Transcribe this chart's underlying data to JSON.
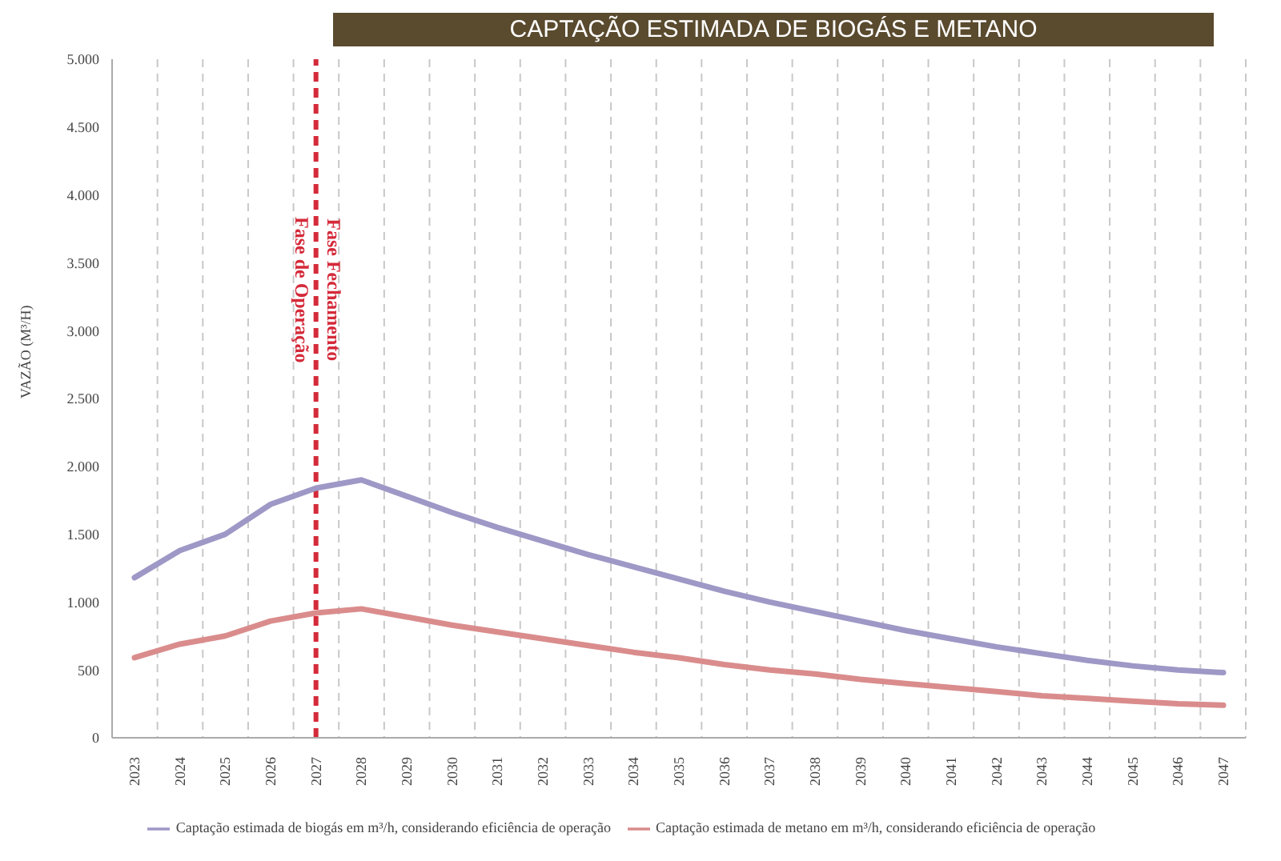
{
  "chart_data": {
    "type": "line",
    "title": "CAPTAÇÃO ESTIMADA DE BIOGÁS E METANO",
    "ylabel": "VAZÃO (M³/H)",
    "categories": [
      "2023",
      "2024",
      "2025",
      "2026",
      "2027",
      "2028",
      "2029",
      "2030",
      "2031",
      "2032",
      "2033",
      "2034",
      "2035",
      "2036",
      "2037",
      "2038",
      "2039",
      "2040",
      "2041",
      "2042",
      "2043",
      "2044",
      "2045",
      "2046",
      "2047"
    ],
    "series": [
      {
        "name": "Captação estimada de biogás em m³/h, considerando eficiência de operação",
        "color": "#9e98c6",
        "values": [
          1180,
          1380,
          1500,
          1720,
          1840,
          1900,
          1780,
          1660,
          1550,
          1450,
          1350,
          1260,
          1170,
          1080,
          1000,
          930,
          860,
          790,
          730,
          670,
          620,
          570,
          530,
          500,
          480
        ]
      },
      {
        "name": "Captação estimada de metano em m³/h, considerando eficiência de operação",
        "color": "#da8c8c",
        "values": [
          590,
          690,
          750,
          860,
          920,
          950,
          890,
          830,
          780,
          730,
          680,
          630,
          590,
          540,
          500,
          470,
          430,
          400,
          370,
          340,
          310,
          290,
          270,
          250,
          240
        ]
      }
    ],
    "ylim": [
      0,
      5000
    ],
    "yticks": [
      0,
      {
        "value": 500,
        "label": "500"
      },
      {
        "value": 1000,
        "label": "1.000"
      },
      {
        "value": 1500,
        "label": "1.500"
      },
      {
        "value": 2000,
        "label": "2.000"
      },
      {
        "value": 2500,
        "label": "2.500"
      },
      {
        "value": 3000,
        "label": "3.000"
      },
      {
        "value": 3500,
        "label": "3.500"
      },
      {
        "value": 4000,
        "label": "4.000"
      },
      {
        "value": 4500,
        "label": "4.500"
      },
      {
        "value": 5000,
        "label": "5.000"
      }
    ],
    "ref_lines": [
      {
        "axis": "x",
        "value": "2027",
        "color": "#d42a3a",
        "line_style": "dashed"
      }
    ],
    "annotations": [
      {
        "text": "Fase de Operação",
        "x": "2027",
        "y": 3300
      },
      {
        "text": "Fase Fechamento",
        "x": "2027",
        "y": 3300
      }
    ],
    "grid": "x",
    "legend": "bottom",
    "marker": "none",
    "line_style": "solid"
  }
}
